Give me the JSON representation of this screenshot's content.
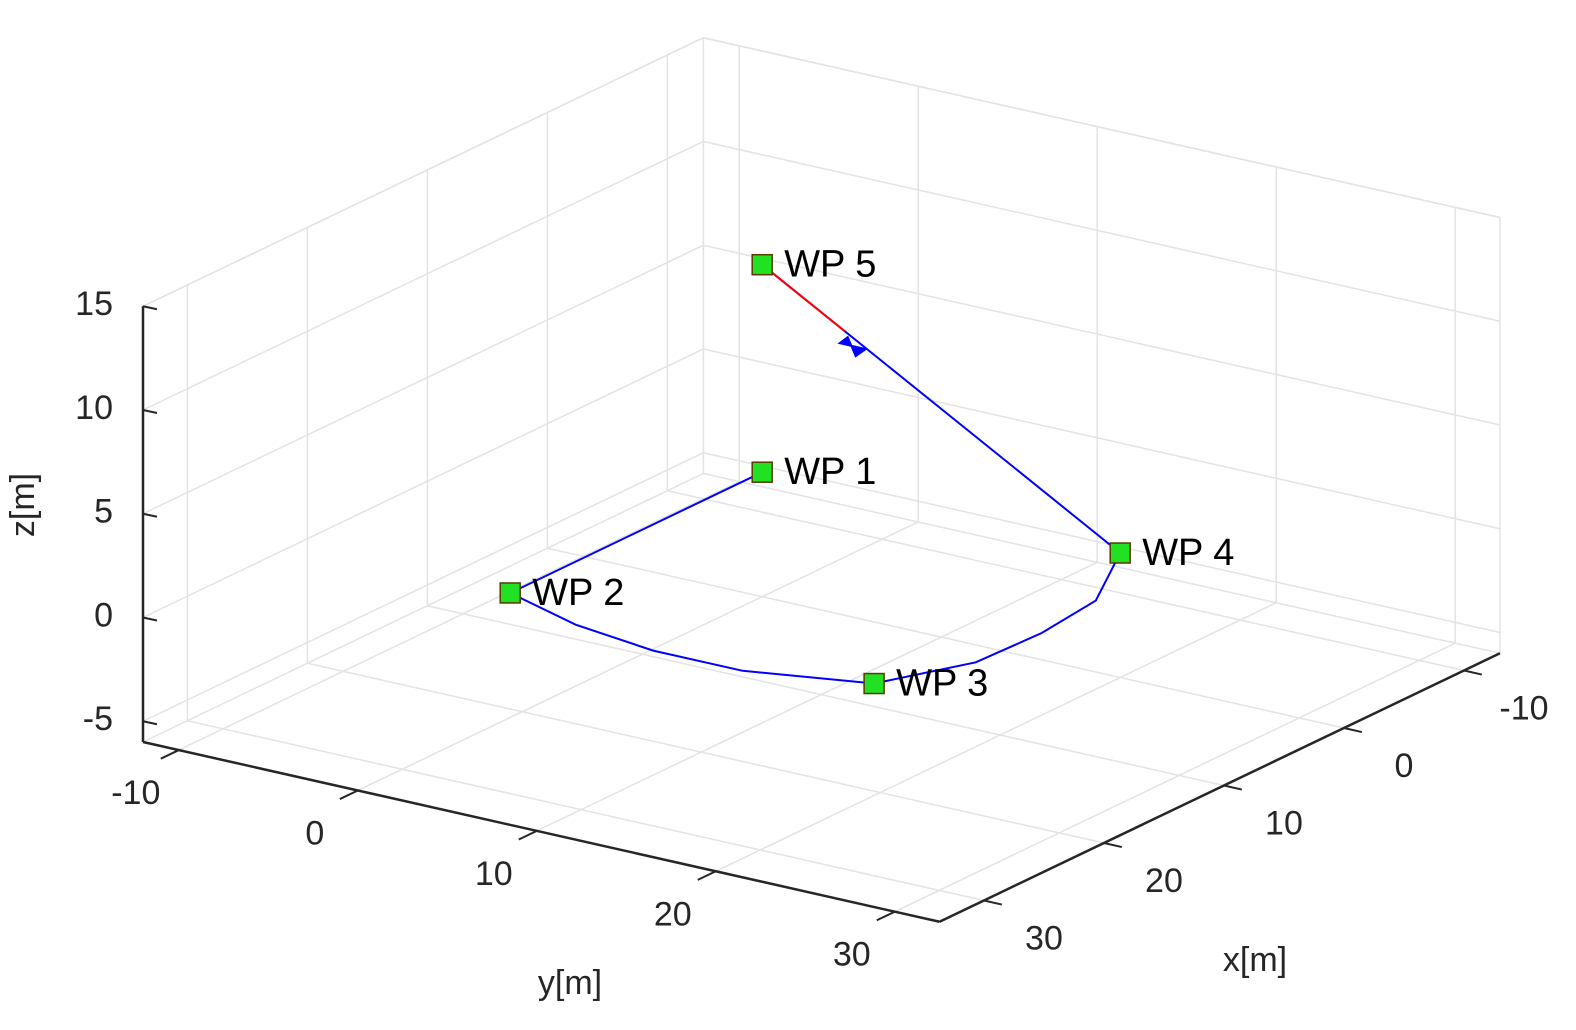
{
  "chart_data": {
    "type": "line3d",
    "xlabel": "x[m]",
    "ylabel": "y[m]",
    "zlabel": "z[m]",
    "xlim": [
      -13,
      33.7
    ],
    "ylim": [
      -12,
      32.5
    ],
    "zlim": [
      -6,
      15
    ],
    "xticks": [
      -10,
      0,
      10,
      20,
      30
    ],
    "yticks": [
      -10,
      0,
      10,
      20,
      30
    ],
    "zticks": [
      -5,
      0,
      5,
      10,
      15
    ],
    "grid": true,
    "series": [
      {
        "color": "#0000ff",
        "x": [
          0,
          21,
          23,
          24,
          24,
          22,
          18,
          14,
          8,
          0,
          0
        ],
        "y": [
          0,
          0,
          5,
          10,
          15,
          21,
          24,
          25,
          24,
          20,
          0
        ],
        "z": [
          0,
          0,
          0,
          0,
          0,
          0,
          0.5,
          1,
          0.7,
          0,
          10
        ]
      },
      {
        "color": "#ff0000",
        "x": [
          0,
          0
        ],
        "y": [
          0,
          4.6
        ],
        "z": [
          10,
          7.7
        ]
      }
    ],
    "waypoints": {
      "color": "#22e022",
      "items": [
        {
          "name": "WP 1",
          "x": 0,
          "y": 0,
          "z": 0
        },
        {
          "name": "WP 2",
          "x": 21,
          "y": 0,
          "z": 0
        },
        {
          "name": "WP 3",
          "x": 22,
          "y": 21,
          "z": 0
        },
        {
          "name": "WP 4",
          "x": 0,
          "y": 20,
          "z": 0
        },
        {
          "name": "WP 5",
          "x": 0,
          "y": 0,
          "z": 10
        }
      ]
    },
    "uav": {
      "color": "#0000ff",
      "x": 0,
      "y": 5,
      "z": 7
    }
  }
}
